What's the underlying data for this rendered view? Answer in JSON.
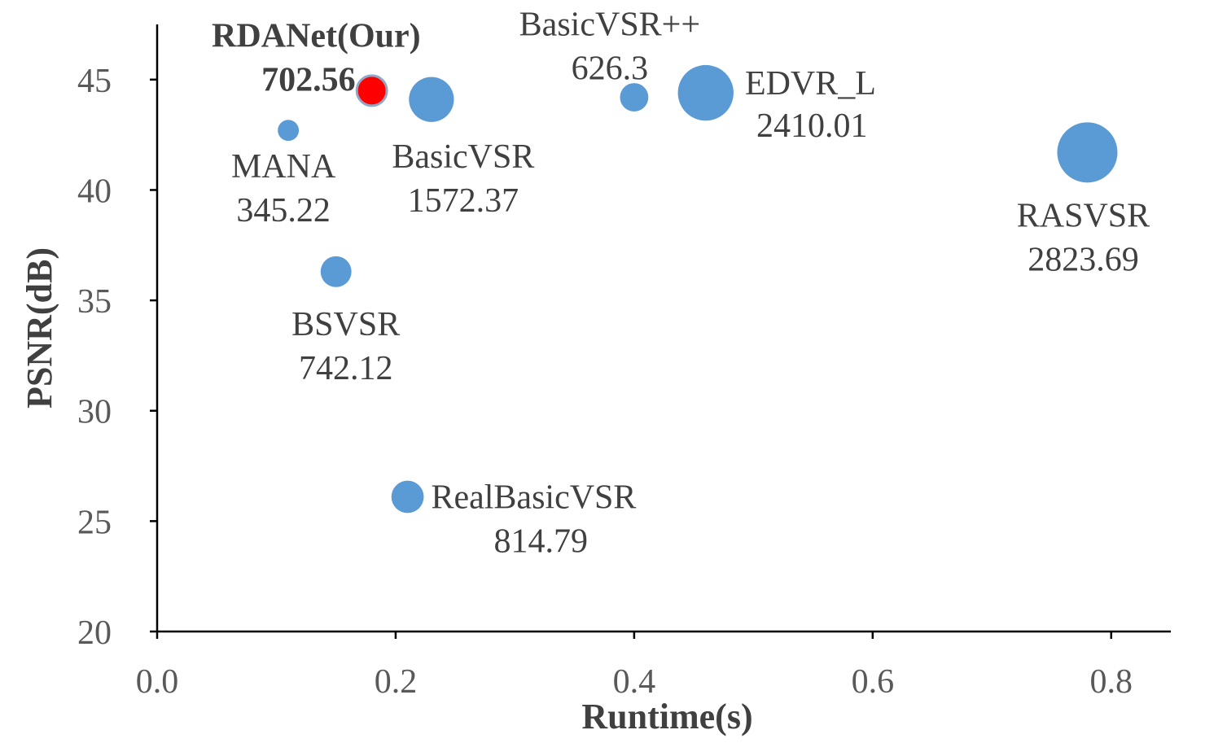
{
  "chart_data": {
    "type": "scatter",
    "subtype": "bubble",
    "title": "",
    "xlabel": "Runtime(s)",
    "ylabel": "PSNR(dB)",
    "xlim": [
      0.0,
      0.85
    ],
    "ylim": [
      20,
      47.5
    ],
    "xticks": [
      "0.0",
      "0.2",
      "0.4",
      "0.6",
      "0.8"
    ],
    "xtick_values": [
      0.0,
      0.2,
      0.4,
      0.6,
      0.8
    ],
    "yticks": [
      "20",
      "25",
      "30",
      "35",
      "40",
      "45"
    ],
    "ytick_values": [
      20,
      25,
      30,
      35,
      40,
      45
    ],
    "grid": false,
    "legend": "none",
    "size_meaning": "label value (second line)",
    "points": [
      {
        "name": "RDANet(Our)",
        "value_label": "702.56",
        "x": 0.18,
        "y": 44.5,
        "size": 702.56,
        "color": "#ff0000",
        "highlight": true,
        "label_pos": "upper-left"
      },
      {
        "name": "MANA",
        "value_label": "345.22",
        "x": 0.11,
        "y": 42.7,
        "size": 345.22,
        "color": "#5b9bd5",
        "highlight": false,
        "label_pos": "below"
      },
      {
        "name": "BasicVSR",
        "value_label": "1572.37",
        "x": 0.23,
        "y": 44.1,
        "size": 1572.37,
        "color": "#5b9bd5",
        "highlight": false,
        "label_pos": "below"
      },
      {
        "name": "BasicVSR++",
        "value_label": "626.3",
        "x": 0.4,
        "y": 44.2,
        "size": 626.3,
        "color": "#5b9bd5",
        "highlight": false,
        "label_pos": "above"
      },
      {
        "name": "EDVR_L",
        "value_label": "2410.01",
        "x": 0.46,
        "y": 44.4,
        "size": 2410.01,
        "color": "#5b9bd5",
        "highlight": false,
        "label_pos": "right"
      },
      {
        "name": "RASVSR",
        "value_label": "2823.69",
        "x": 0.78,
        "y": 41.7,
        "size": 2823.69,
        "color": "#5b9bd5",
        "highlight": false,
        "label_pos": "below"
      },
      {
        "name": "BSVSR",
        "value_label": "742.12",
        "x": 0.15,
        "y": 36.3,
        "size": 742.12,
        "color": "#5b9bd5",
        "highlight": false,
        "label_pos": "below"
      },
      {
        "name": "RealBasicVSR",
        "value_label": "814.79",
        "x": 0.21,
        "y": 26.1,
        "size": 814.79,
        "color": "#5b9bd5",
        "highlight": false,
        "label_pos": "right-below"
      }
    ]
  }
}
